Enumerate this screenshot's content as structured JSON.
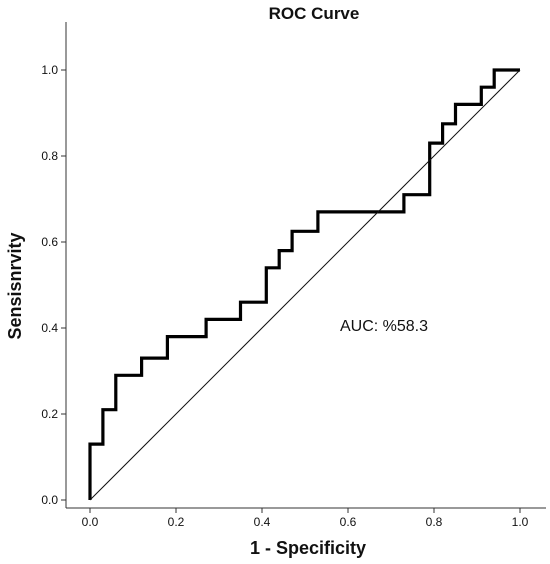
{
  "chart_data": {
    "type": "line",
    "title": "ROC Curve",
    "xlabel": "1 - Specificity",
    "ylabel": "Sensisnrvity",
    "xlim": [
      0,
      1
    ],
    "ylim": [
      0,
      1
    ],
    "x_ticks": [
      "0.0",
      "0.2",
      "0.4",
      "0.6",
      "0.8",
      "1.0"
    ],
    "y_ticks": [
      "0.0",
      "0.2",
      "0.4",
      "0.6",
      "0.8",
      "1.0"
    ],
    "annotation": "AUC: %58.3",
    "grid": false,
    "series": [
      {
        "style": "step",
        "x": [
          0.0,
          0.0,
          0.03,
          0.03,
          0.06,
          0.06,
          0.12,
          0.12,
          0.18,
          0.18,
          0.27,
          0.27,
          0.35,
          0.35,
          0.41,
          0.41,
          0.44,
          0.44,
          0.47,
          0.47,
          0.53,
          0.53,
          0.73,
          0.73,
          0.79,
          0.79,
          0.82,
          0.82,
          0.85,
          0.85,
          0.91,
          0.91,
          0.94,
          0.94,
          1.0
        ],
        "y": [
          0.0,
          0.13,
          0.13,
          0.21,
          0.21,
          0.29,
          0.29,
          0.33,
          0.33,
          0.38,
          0.38,
          0.42,
          0.42,
          0.46,
          0.46,
          0.54,
          0.54,
          0.58,
          0.58,
          0.625,
          0.625,
          0.67,
          0.67,
          0.71,
          0.71,
          0.83,
          0.83,
          0.875,
          0.875,
          0.92,
          0.92,
          0.96,
          0.96,
          1.0,
          1.0
        ]
      },
      {
        "style": "reference",
        "x": [
          0,
          1
        ],
        "y": [
          0,
          1
        ]
      }
    ]
  }
}
